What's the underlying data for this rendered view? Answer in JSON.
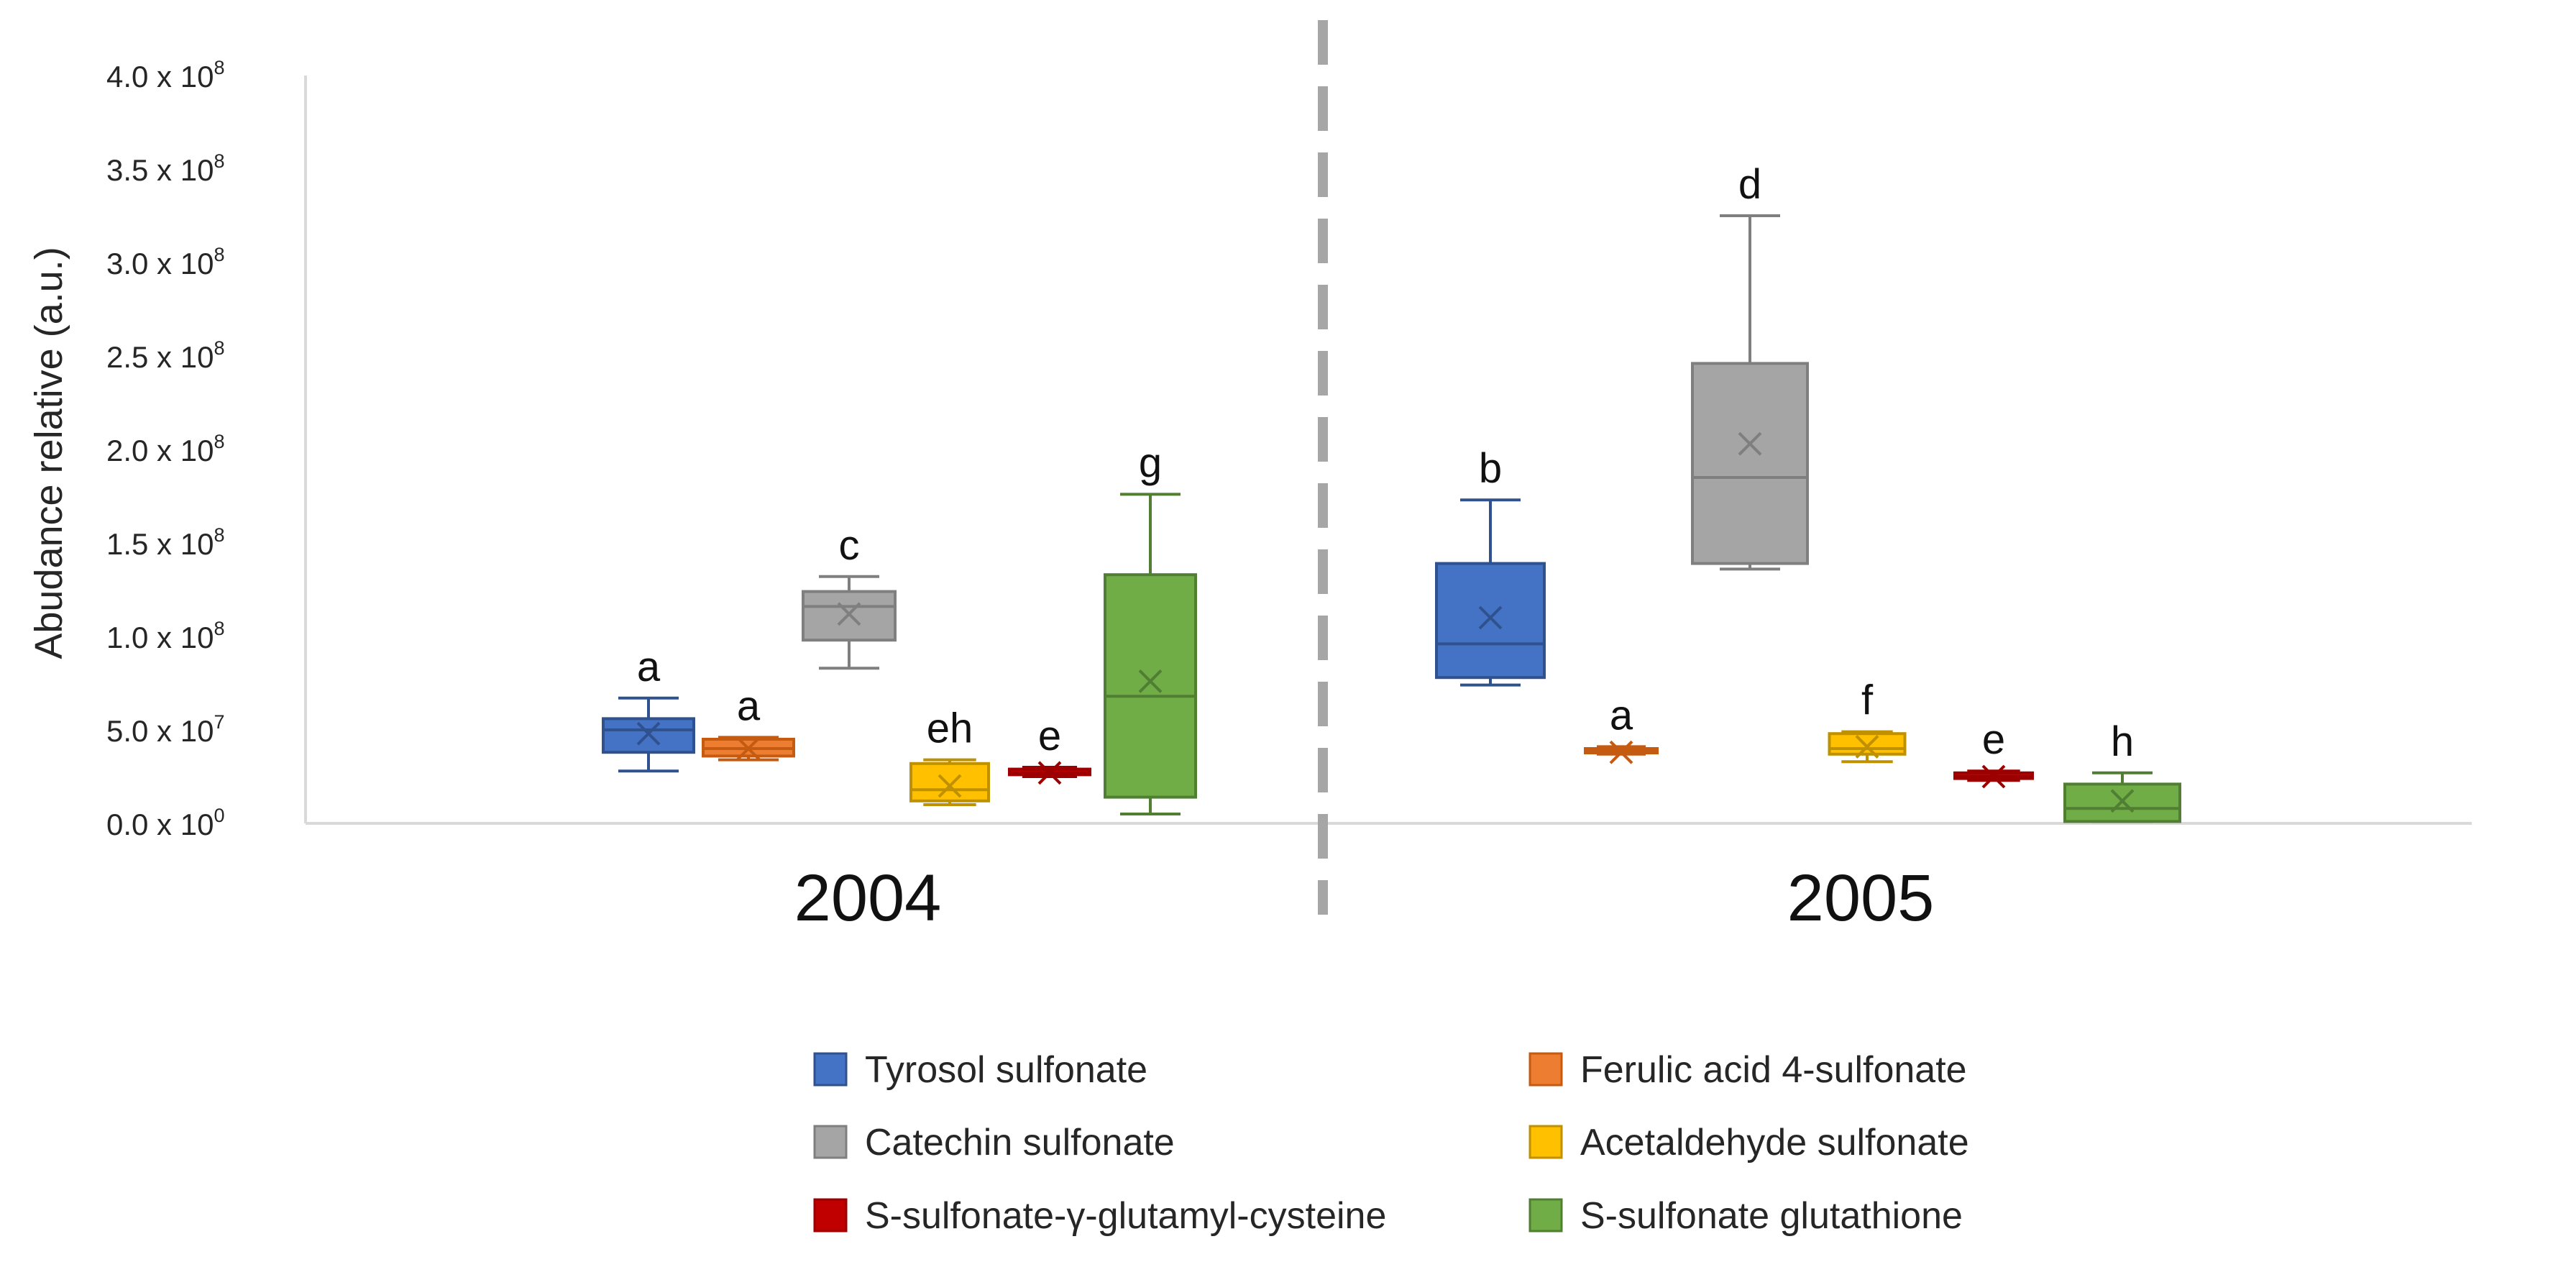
{
  "chart_data": {
    "type": "box",
    "ylabel": "Abudance relative (a.u.)",
    "ylim": [
      0,
      400000000
    ],
    "y_ticks": [
      {
        "value": 0,
        "mantissa": "0.0 x 10",
        "exp": "0"
      },
      {
        "value": 50000000,
        "mantissa": "5.0 x  10",
        "exp": "7"
      },
      {
        "value": 100000000,
        "mantissa": "1.0 x 10",
        "exp": "8"
      },
      {
        "value": 150000000,
        "mantissa": "1.5 x 10",
        "exp": "8"
      },
      {
        "value": 200000000,
        "mantissa": "2.0 x 10",
        "exp": "8"
      },
      {
        "value": 250000000,
        "mantissa": "2.5 x 10",
        "exp": "8"
      },
      {
        "value": 300000000,
        "mantissa": "3.0 x 10",
        "exp": "8"
      },
      {
        "value": 350000000,
        "mantissa": "3.5 x 10",
        "exp": "8"
      },
      {
        "value": 400000000,
        "mantissa": "4.0 x 10",
        "exp": "8"
      }
    ],
    "categories": [
      "2004",
      "2005"
    ],
    "grid": false,
    "legend_position": "bottom",
    "series": [
      {
        "name": "Tyrosol sulfonate",
        "color": "#4472C4",
        "stroke": "#2F528F",
        "boxes": [
          {
            "min": 28000000,
            "q1": 38000000,
            "median": 50000000,
            "q3": 56000000,
            "max": 67000000,
            "mean": 48000000,
            "letter": "a"
          },
          {
            "min": 74000000,
            "q1": 78000000,
            "median": 96000000,
            "q3": 139000000,
            "max": 173000000,
            "mean": 110000000,
            "letter": "b"
          }
        ]
      },
      {
        "name": "Ferulic acid 4-sulfonate",
        "color": "#ED7D31",
        "stroke": "#C55A11",
        "boxes": [
          {
            "min": 34000000,
            "q1": 36000000,
            "median": 40000000,
            "q3": 45000000,
            "max": 46000000,
            "mean": 40000000,
            "letter": "a"
          },
          {
            "min": 37000000,
            "q1": 38000000,
            "median": 39000000,
            "q3": 40000000,
            "max": 41000000,
            "mean": 38000000,
            "letter": "a"
          }
        ]
      },
      {
        "name": "Catechin sulfonate",
        "color": "#A5A5A5",
        "stroke": "#7F7F7F",
        "boxes": [
          {
            "min": 83000000,
            "q1": 98000000,
            "median": 116000000,
            "q3": 124000000,
            "max": 132000000,
            "mean": 112000000,
            "letter": "c"
          },
          {
            "min": 136000000,
            "q1": 139000000,
            "median": 185000000,
            "q3": 246000000,
            "max": 325000000,
            "mean": 203000000,
            "letter": "d"
          }
        ]
      },
      {
        "name": "Acetaldehyde sulfonate",
        "color": "#FFC000",
        "stroke": "#BF9000",
        "boxes": [
          {
            "min": 10000000,
            "q1": 12000000,
            "median": 18000000,
            "q3": 32000000,
            "max": 34000000,
            "mean": 20000000,
            "letter": "eh"
          },
          {
            "min": 33000000,
            "q1": 37000000,
            "median": 40000000,
            "q3": 48000000,
            "max": 49000000,
            "mean": 41000000,
            "letter": "f"
          }
        ]
      },
      {
        "name": "S-sulfonate-γ-glutamyl-cysteine",
        "color": "#C00000",
        "stroke": "#9C0000",
        "boxes": [
          {
            "min": 25000000,
            "q1": 26000000,
            "median": 27000000,
            "q3": 29000000,
            "max": 30000000,
            "mean": 27000000,
            "letter": "e"
          },
          {
            "min": 23000000,
            "q1": 24000000,
            "median": 25000000,
            "q3": 27000000,
            "max": 28000000,
            "mean": 25000000,
            "letter": "e"
          }
        ]
      },
      {
        "name": "S-sulfonate glutathione",
        "color": "#70AD47",
        "stroke": "#507E32",
        "boxes": [
          {
            "min": 5000000,
            "q1": 14000000,
            "median": 68000000,
            "q3": 133000000,
            "max": 176000000,
            "mean": 76000000,
            "letter": "g"
          },
          {
            "min": 1000000,
            "q1": 1000000,
            "median": 8000000,
            "q3": 21000000,
            "max": 27000000,
            "mean": 12000000,
            "letter": "h"
          }
        ]
      }
    ]
  }
}
